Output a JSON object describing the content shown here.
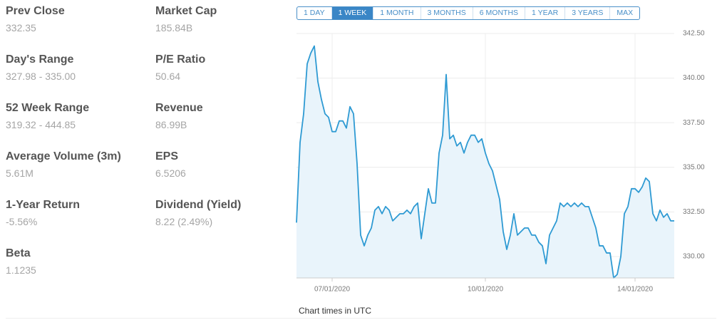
{
  "stats": {
    "columns": [
      [
        {
          "label": "Prev Close",
          "value": "332.35"
        },
        {
          "label": "Day's Range",
          "value": "327.98 - 335.00"
        },
        {
          "label": "52 Week Range",
          "value": "319.32 - 444.85"
        },
        {
          "label": "Average Volume (3m)",
          "value": "5.61M"
        },
        {
          "label": "1-Year Return",
          "value": "-5.56%"
        },
        {
          "label": "Beta",
          "value": "1.1235"
        }
      ],
      [
        {
          "label": "Market Cap",
          "value": "185.84B"
        },
        {
          "label": "P/E Ratio",
          "value": "50.64"
        },
        {
          "label": "Revenue",
          "value": "86.99B"
        },
        {
          "label": "EPS",
          "value": "6.5206"
        },
        {
          "label": "Dividend (Yield)",
          "value": "8.22 (2.49%)"
        }
      ]
    ]
  },
  "ranges": {
    "options": [
      "1 DAY",
      "1 WEEK",
      "1 MONTH",
      "3 MONTHS",
      "6 MONTHS",
      "1 YEAR",
      "3 YEARS",
      "MAX"
    ],
    "active": 1
  },
  "note": "Chart times in UTC",
  "chart_data": {
    "type": "area",
    "color": "#2e9ad3",
    "fill": "#e9f4fb",
    "grid": true,
    "values": [
      331.9,
      336.4,
      338.0,
      340.8,
      341.4,
      341.8,
      339.8,
      338.8,
      338.0,
      337.8,
      337.0,
      337.0,
      337.6,
      337.6,
      337.2,
      338.4,
      338.0,
      335.2,
      331.2,
      330.6,
      331.2,
      331.6,
      332.6,
      332.8,
      332.4,
      332.8,
      332.6,
      332.0,
      332.2,
      332.4,
      332.4,
      332.6,
      332.4,
      332.8,
      333.0,
      331.0,
      332.4,
      333.8,
      333.0,
      333.0,
      335.8,
      336.8,
      340.2,
      336.6,
      336.8,
      336.2,
      336.4,
      335.8,
      336.4,
      336.8,
      336.8,
      336.4,
      336.6,
      335.8,
      335.2,
      334.8,
      334.0,
      333.2,
      331.4,
      330.4,
      331.2,
      332.4,
      331.2,
      331.4,
      331.6,
      331.6,
      331.2,
      331.2,
      330.8,
      330.6,
      329.6,
      331.2,
      331.6,
      332.0,
      333.0,
      332.8,
      333.0,
      332.8,
      333.0,
      332.8,
      333.0,
      332.8,
      332.8,
      332.2,
      331.6,
      330.6,
      330.6,
      330.2,
      330.2,
      328.8,
      329.0,
      330.0,
      332.4,
      332.8,
      333.8,
      333.8,
      333.6,
      333.9,
      334.4,
      334.2,
      332.4,
      332.0,
      332.6,
      332.2,
      332.4,
      332.0,
      332.0
    ],
    "xlim": [
      0,
      106
    ],
    "xticks": [
      {
        "value": 10,
        "label": "07/01/2020"
      },
      {
        "value": 53,
        "label": "10/01/2020"
      },
      {
        "value": 95,
        "label": "14/01/2020"
      }
    ],
    "ylim": [
      328.8,
      342.5
    ],
    "yticks": [
      {
        "value": 330,
        "label": "330.00"
      },
      {
        "value": 332.5,
        "label": "332.50"
      },
      {
        "value": 335,
        "label": "335.00"
      },
      {
        "value": 337.5,
        "label": "337.50"
      },
      {
        "value": 340,
        "label": "340.00"
      },
      {
        "value": 342.5,
        "label": "342.50"
      }
    ]
  }
}
